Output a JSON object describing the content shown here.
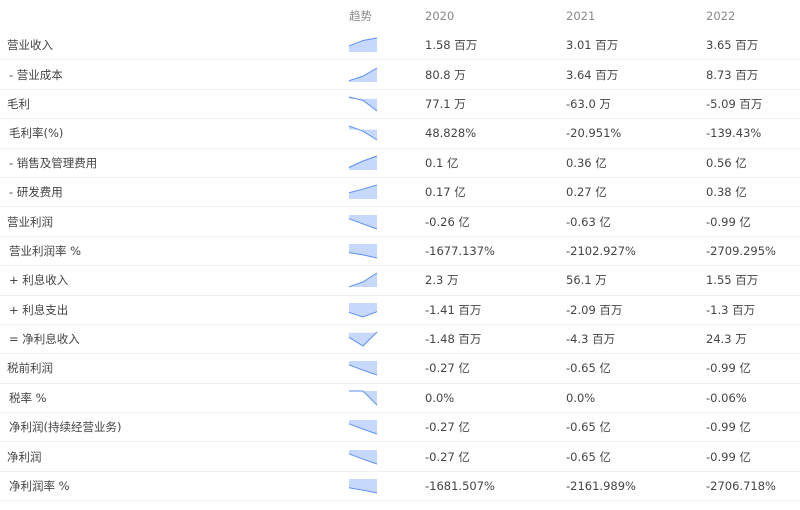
{
  "header": {
    "label": "",
    "trend": "趋势",
    "years": [
      "2020",
      "2021",
      "2022"
    ]
  },
  "colors": {
    "section_first": "#c9cbce",
    "section": "#dcdde0",
    "spark_line": "#5b8ff0",
    "spark_fill": "#c6d8fb"
  },
  "rows": [
    {
      "label": "营业收入",
      "type": "section",
      "values": [
        "1.58 百万",
        "3.01 百万",
        "3.65 百万"
      ],
      "trend": [
        1.58,
        3.01,
        3.65
      ]
    },
    {
      "label": "- 营业成本",
      "type": "sub",
      "values": [
        "80.8 万",
        "3.64 百万",
        "8.73 百万"
      ],
      "trend": [
        0.808,
        3.64,
        8.73
      ]
    },
    {
      "label": "毛利",
      "type": "section",
      "values": [
        "77.1 万",
        "-63.0 万",
        "-5.09 百万"
      ],
      "trend": [
        0.771,
        -0.63,
        -5.09
      ]
    },
    {
      "label": "毛利率(%)",
      "type": "sub",
      "values": [
        "48.828%",
        "-20.951%",
        "-139.43%"
      ],
      "trend": [
        48.828,
        -20.951,
        -139.43
      ]
    },
    {
      "label": "- 销售及管理费用",
      "type": "sub",
      "values": [
        "0.1 亿",
        "0.36 亿",
        "0.56 亿"
      ],
      "trend": [
        0.1,
        0.36,
        0.56
      ]
    },
    {
      "label": "- 研发费用",
      "type": "sub",
      "values": [
        "0.17 亿",
        "0.27 亿",
        "0.38 亿"
      ],
      "trend": [
        0.17,
        0.27,
        0.38
      ]
    },
    {
      "label": "营业利润",
      "type": "section",
      "values": [
        "-0.26 亿",
        "-0.63 亿",
        "-0.99 亿"
      ],
      "trend": [
        -0.26,
        -0.63,
        -0.99
      ]
    },
    {
      "label": "营业利润率 %",
      "type": "sub",
      "values": [
        "-1677.137%",
        "-2102.927%",
        "-2709.295%"
      ],
      "trend": [
        -1677.137,
        -2102.927,
        -2709.295
      ]
    },
    {
      "label": "+ 利息收入",
      "type": "sub",
      "values": [
        "2.3 万",
        "56.1 万",
        "1.55 百万"
      ],
      "trend": [
        0.023,
        0.561,
        1.55
      ]
    },
    {
      "label": "+ 利息支出",
      "type": "sub",
      "values": [
        "-1.41 百万",
        "-2.09 百万",
        "-1.3 百万"
      ],
      "trend": [
        -1.41,
        -2.09,
        -1.3
      ]
    },
    {
      "label": "= 净利息收入",
      "type": "sub",
      "values": [
        "-1.48 百万",
        "-4.3 百万",
        "24.3 万"
      ],
      "trend": [
        -1.48,
        -4.3,
        0.243
      ]
    },
    {
      "label": "税前利润",
      "type": "section",
      "values": [
        "-0.27 亿",
        "-0.65 亿",
        "-0.99 亿"
      ],
      "trend": [
        -0.27,
        -0.65,
        -0.99
      ]
    },
    {
      "label": "税率 %",
      "type": "sub",
      "values": [
        "0.0%",
        "0.0%",
        "-0.06%"
      ],
      "trend": [
        0,
        0,
        -0.06
      ]
    },
    {
      "label": "净利润(持续经营业务)",
      "type": "sub",
      "values": [
        "-0.27 亿",
        "-0.65 亿",
        "-0.99 亿"
      ],
      "trend": [
        -0.27,
        -0.65,
        -0.99
      ]
    },
    {
      "label": "净利润",
      "type": "section",
      "values": [
        "-0.27 亿",
        "-0.65 亿",
        "-0.99 亿"
      ],
      "trend": [
        -0.27,
        -0.65,
        -0.99
      ]
    },
    {
      "label": "净利润率 %",
      "type": "sub",
      "values": [
        "-1681.507%",
        "-2161.989%",
        "-2706.718%"
      ],
      "trend": [
        -1681.507,
        -2161.989,
        -2706.718
      ]
    }
  ]
}
